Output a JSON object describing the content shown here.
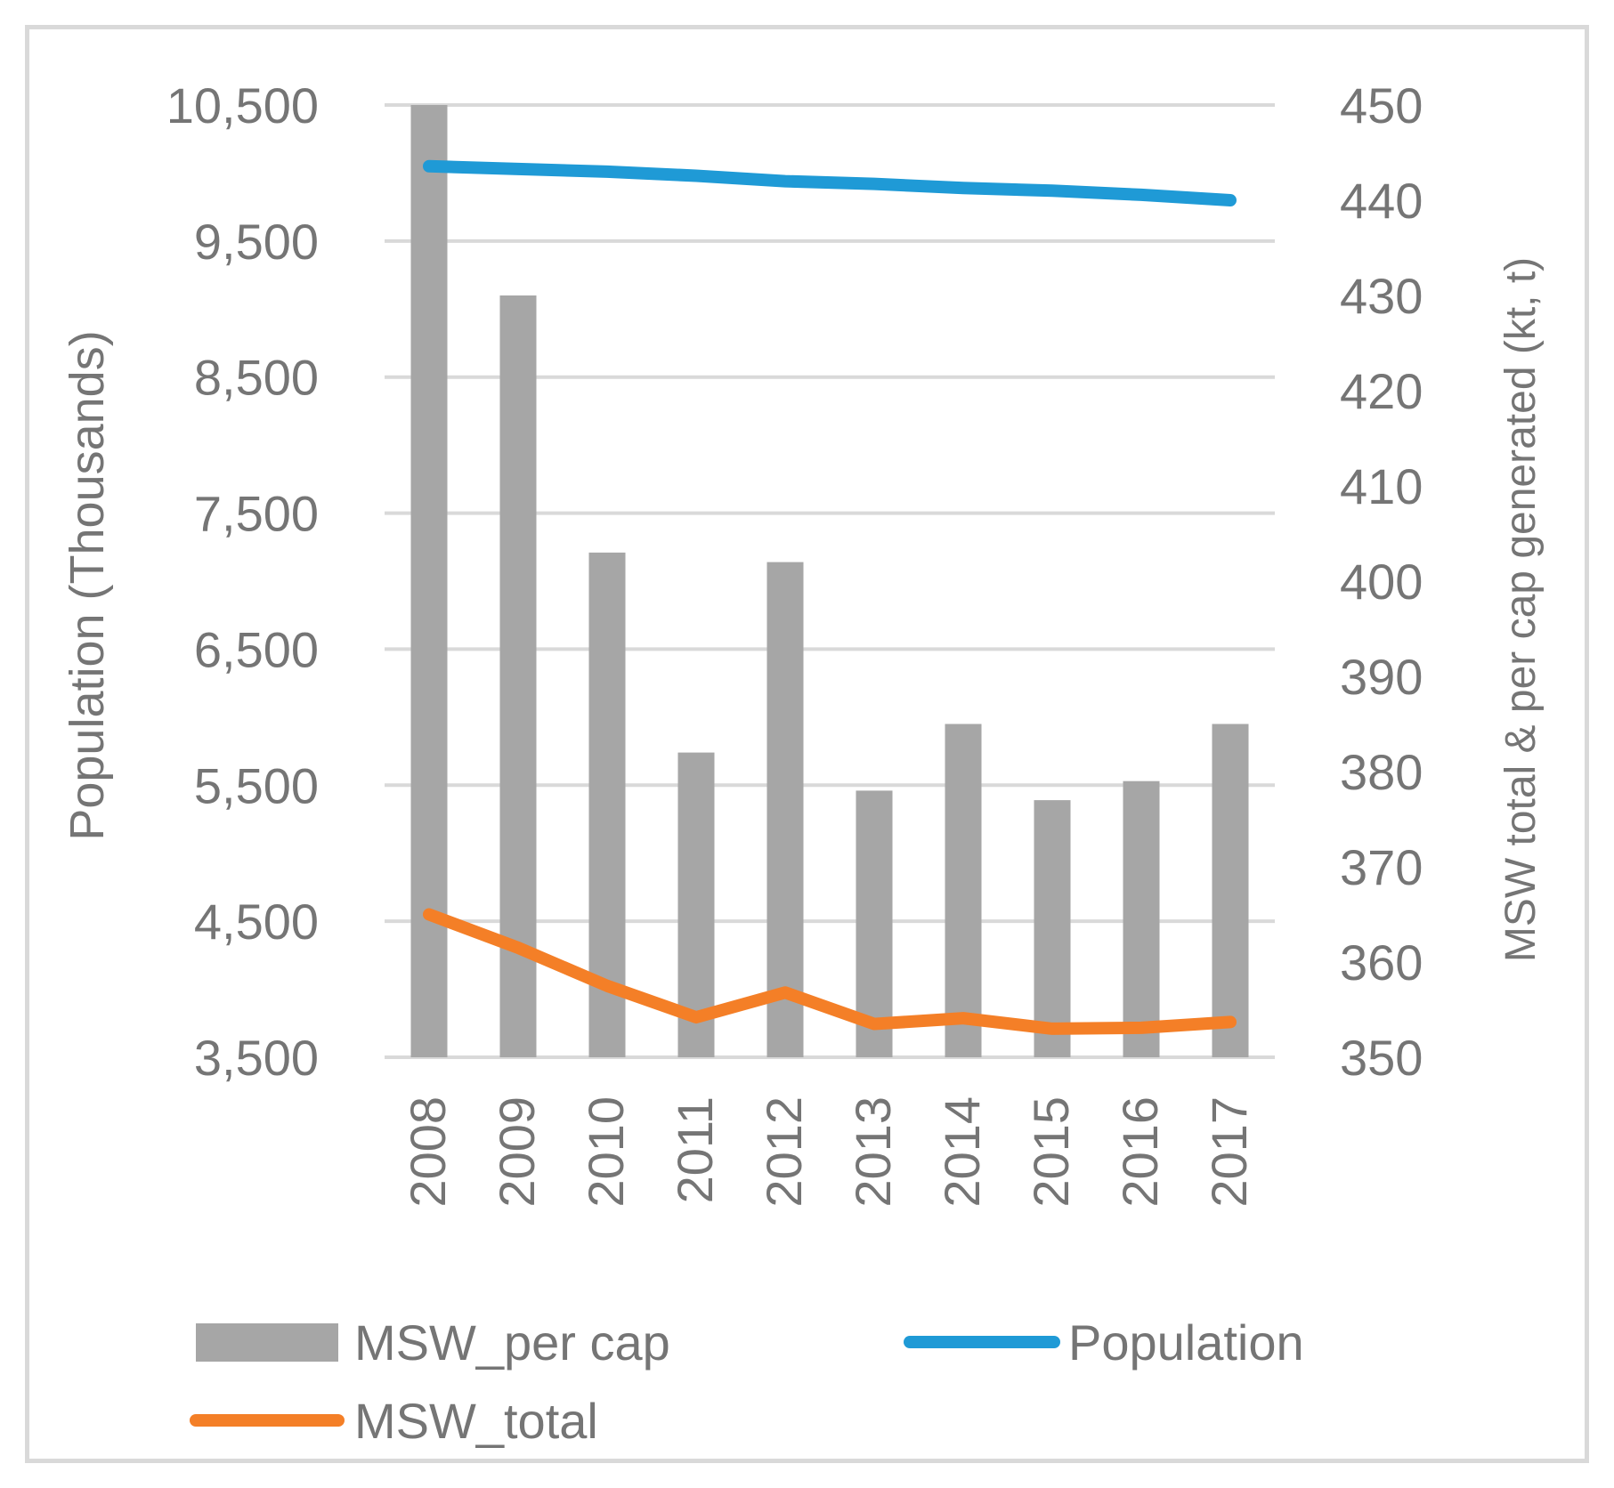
{
  "chart_data": {
    "type": "bar+line",
    "categories": [
      "2008",
      "2009",
      "2010",
      "2011",
      "2012",
      "2013",
      "2014",
      "2015",
      "2016",
      "2017"
    ],
    "series": [
      {
        "name": "MSW_per cap",
        "type": "bar",
        "axis": "right",
        "color": "#a6a6a6",
        "values": [
          450,
          430,
          403,
          382,
          402,
          378,
          385,
          377,
          379,
          385
        ]
      },
      {
        "name": "Population",
        "type": "line",
        "axis": "left",
        "color": "#1f9ad6",
        "values": [
          10050,
          10030,
          10010,
          9980,
          9940,
          9920,
          9890,
          9870,
          9840,
          9800
        ]
      },
      {
        "name": "MSW_total",
        "type": "line",
        "axis": "right",
        "color": "#f47f27",
        "values": [
          365,
          361.5,
          357.5,
          354.2,
          356.8,
          353.5,
          354.1,
          353,
          353.1,
          353.7
        ]
      }
    ],
    "left_axis": {
      "label": "Population (Thousands)",
      "min": 3500,
      "max": 10500,
      "ticks": [
        "10,500",
        "9,500",
        "8,500",
        "7,500",
        "6,500",
        "5,500",
        "4,500",
        "3,500"
      ],
      "tick_values": [
        10500,
        9500,
        8500,
        7500,
        6500,
        5500,
        4500,
        3500
      ]
    },
    "right_axis": {
      "label": "MSW total & per cap generated (kt, t)",
      "min": 350,
      "max": 450,
      "ticks": [
        "450",
        "440",
        "430",
        "420",
        "410",
        "400",
        "390",
        "380",
        "370",
        "360",
        "350"
      ],
      "tick_values": [
        450,
        440,
        430,
        420,
        410,
        400,
        390,
        380,
        370,
        360,
        350
      ]
    },
    "grid": true,
    "gridline_color": "#d9d9d9",
    "legend": {
      "placement": "bottom",
      "entries": [
        "MSW_per cap",
        "Population",
        "MSW_total"
      ]
    }
  }
}
